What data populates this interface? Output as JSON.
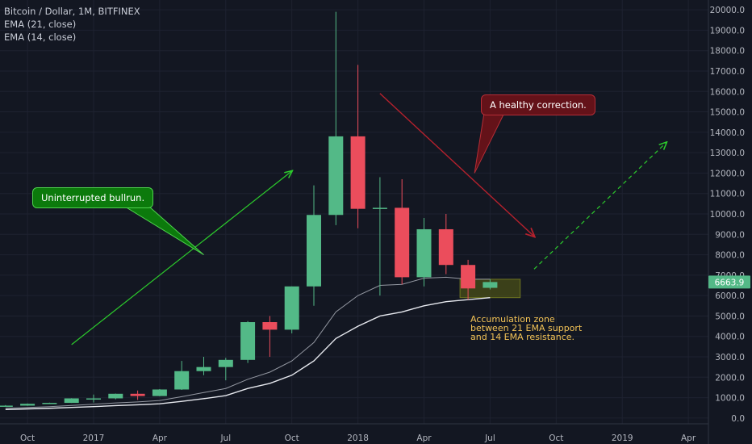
{
  "legend": {
    "title": "Bitcoin / Dollar, 1M, BITFINEX",
    "ema21": "EMA (21, close)",
    "ema14": "EMA (14, close)"
  },
  "callouts": {
    "bullrun": "Uninterrupted bullrun.",
    "correction": "A healthy correction."
  },
  "zone_note": {
    "line1": "Accumulation zone",
    "line2": "between 21 EMA support",
    "line3": "and 14 EMA resistance."
  },
  "price_tag": "6663.9",
  "colors": {
    "background": "#131722",
    "up": "#53b987",
    "down": "#eb4d5c",
    "ema": "#d1d4dc",
    "green_arrow": "#2ccb2c",
    "red_arrow": "#b5212d",
    "zone": "#4a4f17"
  },
  "chart_data": {
    "type": "candlestick",
    "title": "Bitcoin / Dollar, 1M, BITFINEX",
    "ylim": [
      -400,
      20400
    ],
    "y_ticks": [
      0,
      1000,
      2000,
      3000,
      4000,
      5000,
      6000,
      7000,
      8000,
      9000,
      10000,
      11000,
      12000,
      13000,
      14000,
      15000,
      16000,
      17000,
      18000,
      19000,
      20000
    ],
    "y_tick_labels": [
      "0.0",
      "1000.0",
      "2000.0",
      "3000.0",
      "4000.0",
      "5000.0",
      "6000.0",
      "7000.0",
      "8000.0",
      "9000.0",
      "10000.0",
      "11000.0",
      "12000.0",
      "13000.0",
      "14000.0",
      "15000.0",
      "16000.0",
      "17000.0",
      "18000.0",
      "19000.0",
      "20000.0"
    ],
    "x_ticks": [
      {
        "label": "Oct",
        "month": "2016-10"
      },
      {
        "label": "2017",
        "month": "2017-01"
      },
      {
        "label": "Apr",
        "month": "2017-04"
      },
      {
        "label": "Jul",
        "month": "2017-07"
      },
      {
        "label": "Oct",
        "month": "2017-10"
      },
      {
        "label": "2018",
        "month": "2018-01"
      },
      {
        "label": "Apr",
        "month": "2018-04"
      },
      {
        "label": "Jul",
        "month": "2018-07"
      },
      {
        "label": "Oct",
        "month": "2018-10"
      },
      {
        "label": "2019",
        "month": "2019-01"
      },
      {
        "label": "Apr",
        "month": "2019-04"
      }
    ],
    "candles": [
      {
        "month": "2016-09",
        "open": 575,
        "high": 635,
        "low": 570,
        "close": 610
      },
      {
        "month": "2016-10",
        "open": 610,
        "high": 715,
        "low": 600,
        "close": 700
      },
      {
        "month": "2016-11",
        "open": 700,
        "high": 755,
        "low": 690,
        "close": 745
      },
      {
        "month": "2016-12",
        "open": 745,
        "high": 975,
        "low": 740,
        "close": 965
      },
      {
        "month": "2017-01",
        "open": 965,
        "high": 1150,
        "low": 760,
        "close": 965
      },
      {
        "month": "2017-02",
        "open": 965,
        "high": 1200,
        "low": 920,
        "close": 1190
      },
      {
        "month": "2017-03",
        "open": 1190,
        "high": 1350,
        "low": 890,
        "close": 1080
      },
      {
        "month": "2017-04",
        "open": 1080,
        "high": 1420,
        "low": 1070,
        "close": 1400
      },
      {
        "month": "2017-05",
        "open": 1400,
        "high": 2800,
        "low": 1380,
        "close": 2300
      },
      {
        "month": "2017-06",
        "open": 2300,
        "high": 3000,
        "low": 2100,
        "close": 2500
      },
      {
        "month": "2017-07",
        "open": 2500,
        "high": 2950,
        "low": 1850,
        "close": 2850
      },
      {
        "month": "2017-08",
        "open": 2850,
        "high": 4750,
        "low": 2700,
        "close": 4700
      },
      {
        "month": "2017-09",
        "open": 4700,
        "high": 5000,
        "low": 3000,
        "close": 4330
      },
      {
        "month": "2017-10",
        "open": 4330,
        "high": 6450,
        "low": 4150,
        "close": 6450
      },
      {
        "month": "2017-11",
        "open": 6450,
        "high": 11400,
        "low": 5500,
        "close": 9950
      },
      {
        "month": "2017-12",
        "open": 9950,
        "high": 19900,
        "low": 9450,
        "close": 13800
      },
      {
        "month": "2018-01",
        "open": 13800,
        "high": 17300,
        "low": 9300,
        "close": 10250
      },
      {
        "month": "2018-02",
        "open": 10250,
        "high": 11800,
        "low": 6000,
        "close": 10300
      },
      {
        "month": "2018-03",
        "open": 10300,
        "high": 11700,
        "low": 6550,
        "close": 6900
      },
      {
        "month": "2018-04",
        "open": 6900,
        "high": 9800,
        "low": 6450,
        "close": 9250
      },
      {
        "month": "2018-05",
        "open": 9250,
        "high": 10000,
        "low": 7050,
        "close": 7500
      },
      {
        "month": "2018-06",
        "open": 7500,
        "high": 7750,
        "low": 5800,
        "close": 6350
      },
      {
        "month": "2018-07",
        "open": 6380,
        "high": 6800,
        "low": 6300,
        "close": 6663.9
      }
    ],
    "series": [
      {
        "name": "EMA (21, close)",
        "values": [
          [
            "2016-09",
            420
          ],
          [
            "2016-10",
            450
          ],
          [
            "2016-11",
            480
          ],
          [
            "2016-12",
            520
          ],
          [
            "2017-01",
            560
          ],
          [
            "2017-02",
            610
          ],
          [
            "2017-03",
            650
          ],
          [
            "2017-04",
            700
          ],
          [
            "2017-05",
            820
          ],
          [
            "2017-06",
            950
          ],
          [
            "2017-07",
            1100
          ],
          [
            "2017-08",
            1450
          ],
          [
            "2017-09",
            1700
          ],
          [
            "2017-10",
            2100
          ],
          [
            "2017-11",
            2800
          ],
          [
            "2017-12",
            3900
          ],
          [
            "2018-01",
            4500
          ],
          [
            "2018-02",
            5000
          ],
          [
            "2018-03",
            5200
          ],
          [
            "2018-04",
            5500
          ],
          [
            "2018-05",
            5700
          ],
          [
            "2018-06",
            5800
          ],
          [
            "2018-07",
            5900
          ]
        ]
      },
      {
        "name": "EMA (14, close)",
        "values": [
          [
            "2016-09",
            480
          ],
          [
            "2016-10",
            520
          ],
          [
            "2016-11",
            560
          ],
          [
            "2016-12",
            620
          ],
          [
            "2017-01",
            680
          ],
          [
            "2017-02",
            740
          ],
          [
            "2017-03",
            790
          ],
          [
            "2017-04",
            860
          ],
          [
            "2017-05",
            1050
          ],
          [
            "2017-06",
            1250
          ],
          [
            "2017-07",
            1450
          ],
          [
            "2017-08",
            1900
          ],
          [
            "2017-09",
            2250
          ],
          [
            "2017-10",
            2800
          ],
          [
            "2017-11",
            3700
          ],
          [
            "2017-12",
            5200
          ],
          [
            "2018-01",
            6000
          ],
          [
            "2018-02",
            6500
          ],
          [
            "2018-03",
            6550
          ],
          [
            "2018-04",
            6850
          ],
          [
            "2018-05",
            6900
          ],
          [
            "2018-06",
            6800
          ],
          [
            "2018-07",
            6800
          ]
        ]
      }
    ],
    "annotations": {
      "green_arrow": {
        "from": [
          "2016-12",
          3600
        ],
        "to": [
          "2017-10",
          12100
        ]
      },
      "green_callout_pointer": {
        "to": [
          "2017-06",
          8000
        ]
      },
      "red_arrow": {
        "from": [
          "2018-02",
          15900
        ],
        "to": [
          "2018-09",
          8900
        ]
      },
      "red_callout_pointer": {
        "to": [
          "2018-06",
          12000
        ]
      },
      "dashed_projection": {
        "from": [
          "2018-09",
          7300
        ],
        "to": [
          "2019-03",
          13500
        ]
      },
      "accumulation_zone": {
        "from": "2018-06",
        "to": "2018-08",
        "low": 5900,
        "high": 6800
      }
    }
  }
}
